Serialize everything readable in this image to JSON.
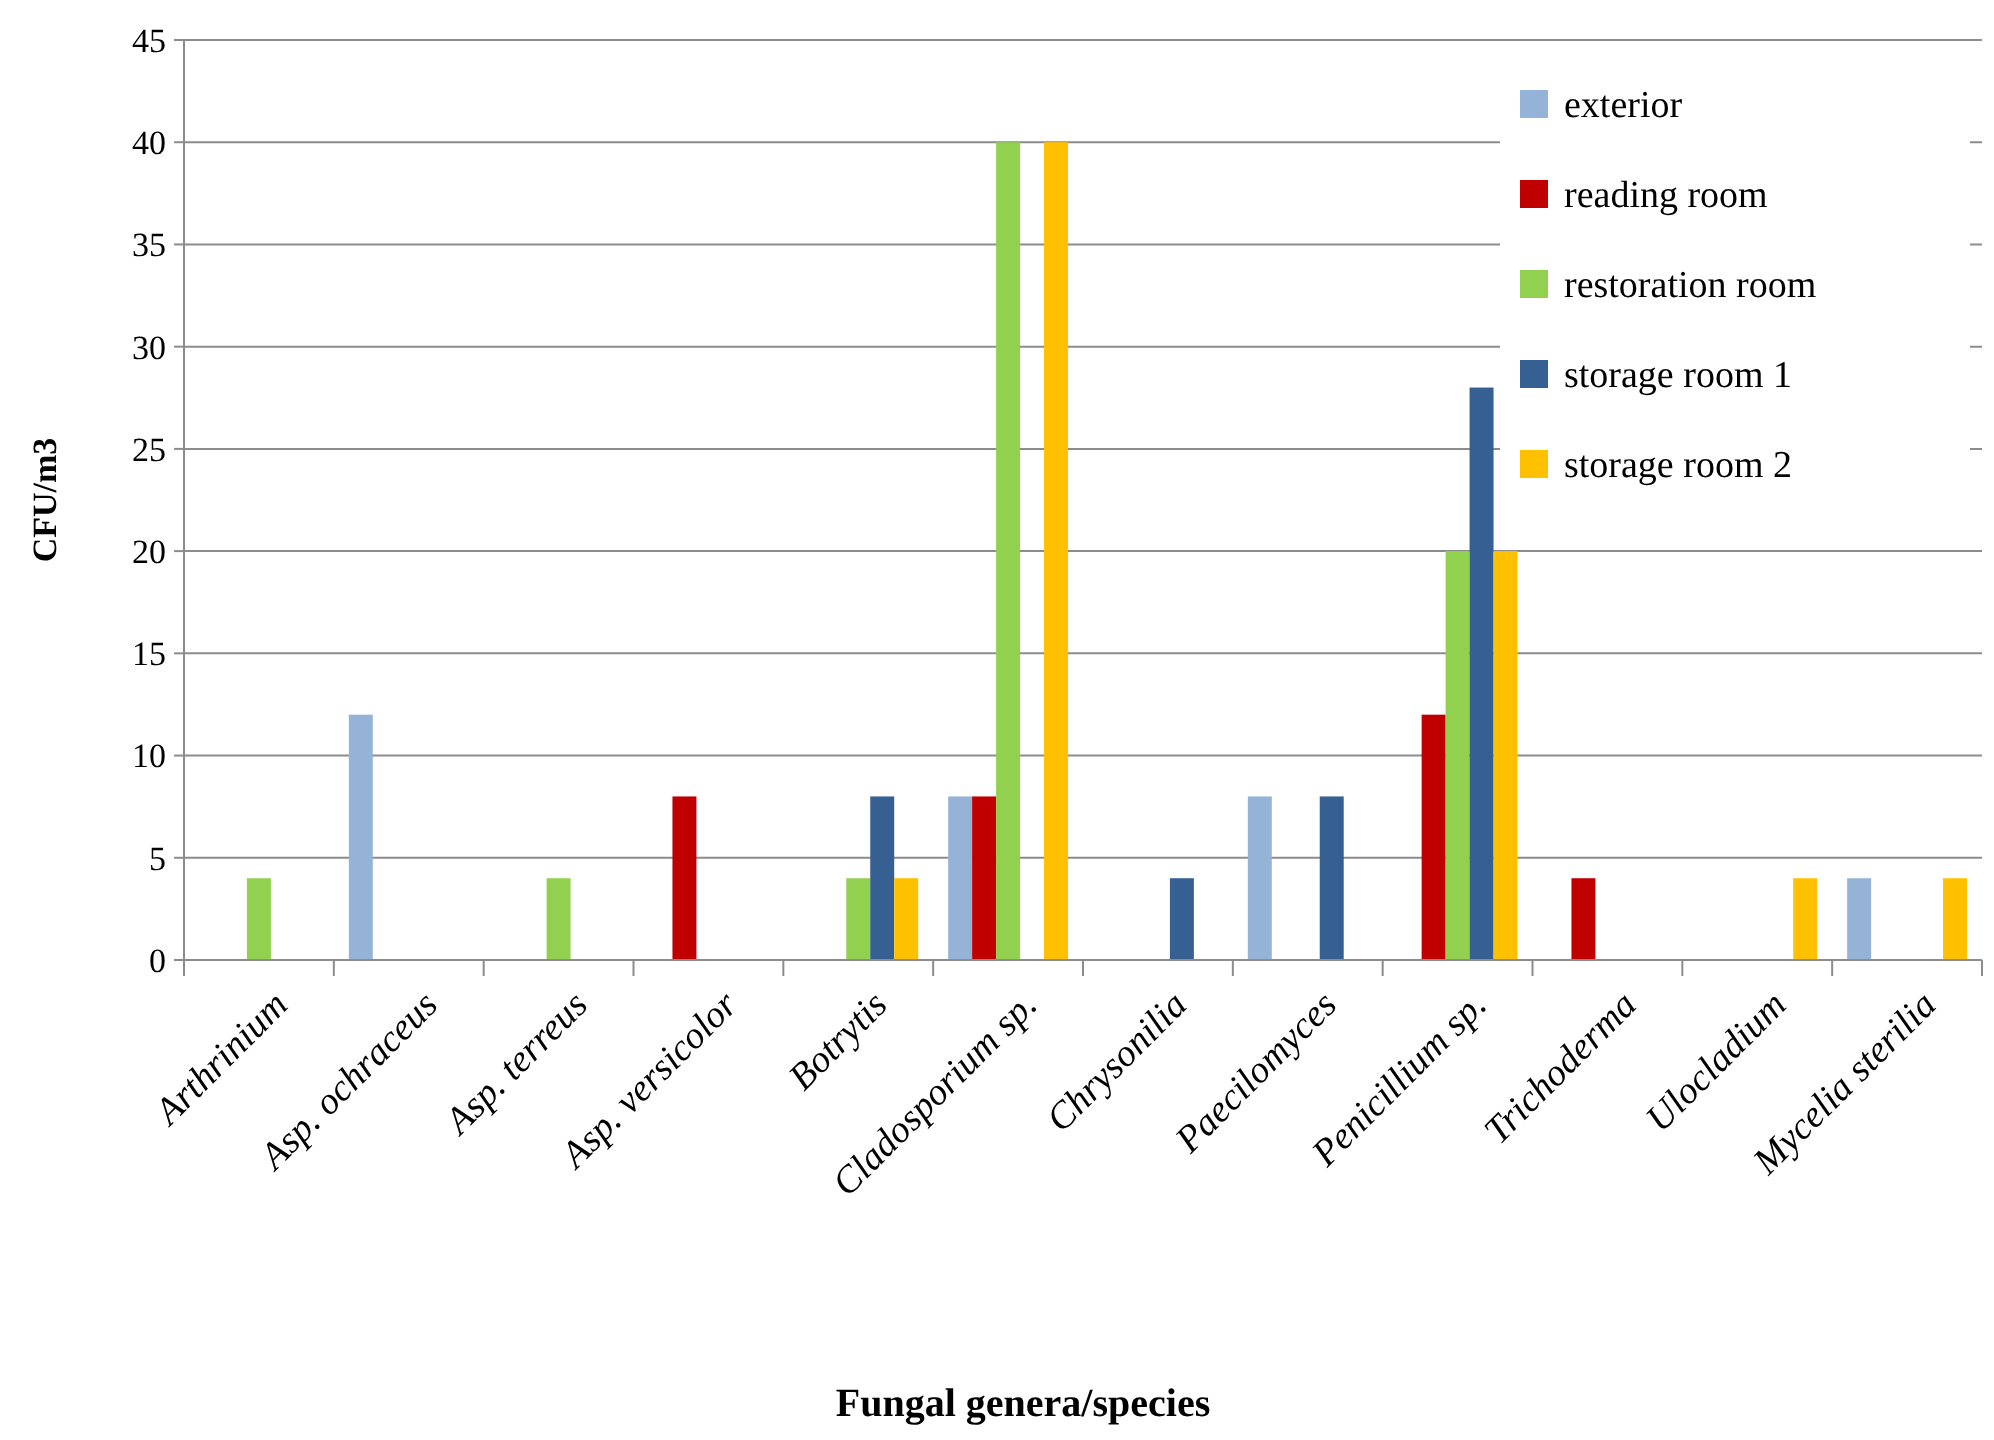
{
  "chart_data": {
    "type": "bar",
    "xlabel": "Fungal genera/species",
    "ylabel": "CFU/m3",
    "categories": [
      "Arthrinium",
      "Asp. ochraceus",
      "Asp. terreus",
      "Asp. versicolor",
      "Botrytis",
      "Cladosporium sp.",
      "Chrysonilia",
      "Paecilomyces",
      "Penicillium sp.",
      "Trichoderma",
      "Ulocladium",
      "Mycelia sterilia"
    ],
    "series": [
      {
        "name": "exterior",
        "color": "#95b3d7",
        "values": [
          0,
          12,
          0,
          0,
          0,
          8,
          0,
          8,
          0,
          0,
          0,
          4
        ]
      },
      {
        "name": "reading room",
        "color": "#c00000",
        "values": [
          0,
          0,
          0,
          8,
          0,
          8,
          0,
          0,
          12,
          4,
          0,
          0
        ]
      },
      {
        "name": "restoration room",
        "color": "#92d050",
        "values": [
          4,
          0,
          4,
          0,
          4,
          40,
          0,
          0,
          20,
          0,
          0,
          0
        ]
      },
      {
        "name": "storage room 1",
        "color": "#366092",
        "values": [
          0,
          0,
          0,
          0,
          8,
          0,
          4,
          8,
          28,
          0,
          0,
          0
        ]
      },
      {
        "name": "storage room 2",
        "color": "#ffc000",
        "values": [
          0,
          0,
          0,
          0,
          4,
          40,
          0,
          0,
          20,
          0,
          4,
          4
        ]
      }
    ],
    "ylim": [
      0,
      45
    ],
    "yticks": [
      0,
      5,
      10,
      15,
      20,
      25,
      30,
      35,
      40,
      45
    ],
    "grid": "y",
    "legend": "top right"
  }
}
